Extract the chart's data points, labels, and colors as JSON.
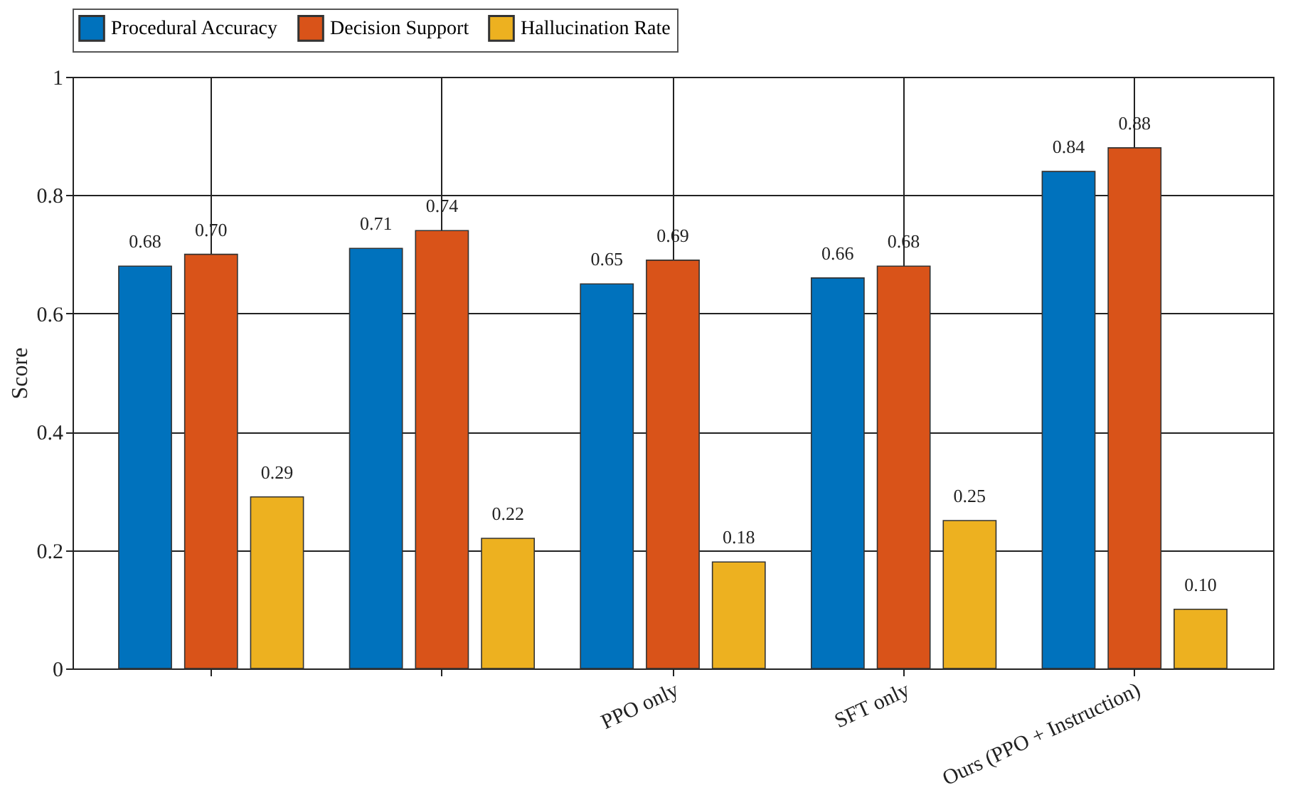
{
  "chart_data": {
    "type": "bar",
    "ylabel": "Score",
    "categories": [
      null,
      null,
      "PPO only",
      "SFT only",
      "Ours (PPO + Instruction)"
    ],
    "series": [
      {
        "name": "Procedural Accuracy",
        "color": "#0072bd",
        "values": [
          0.68,
          0.71,
          0.65,
          0.66,
          0.84
        ],
        "value_labels": [
          "0.68",
          "0.71",
          "0.65",
          "0.66",
          "0.84"
        ]
      },
      {
        "name": "Decision Support",
        "color": "#d95319",
        "values": [
          0.7,
          0.74,
          0.69,
          0.68,
          0.88
        ],
        "value_labels": [
          "0.70",
          "0.74",
          "0.69",
          "0.68",
          "0.88"
        ]
      },
      {
        "name": "Hallucination Rate",
        "color": "#edb120",
        "values": [
          0.29,
          0.22,
          0.18,
          0.25,
          0.1
        ],
        "value_labels": [
          "0.29",
          "0.22",
          "0.18",
          "0.25",
          "0.10"
        ]
      }
    ],
    "ylim": [
      0,
      1
    ],
    "yticks": [
      0,
      0.2,
      0.4,
      0.6,
      0.8,
      1
    ],
    "grid": true,
    "legend": "top"
  }
}
